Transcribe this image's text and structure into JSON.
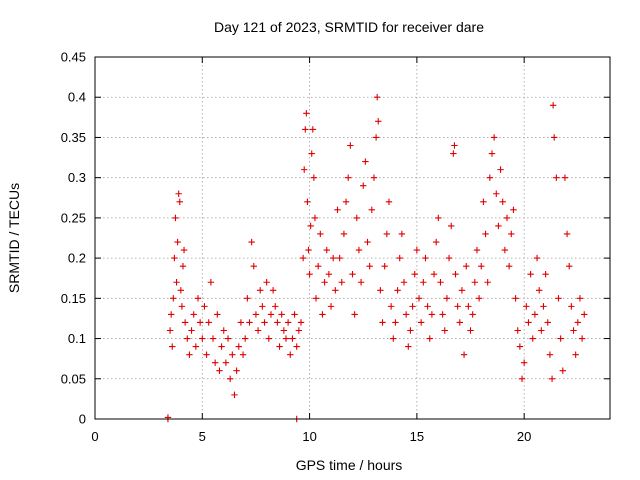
{
  "chart_data": {
    "type": "scatter",
    "title": "Day 121 of 2023, SRMTID for receiver dare",
    "xlabel": "GPS time / hours",
    "ylabel": "SRMTID / TECUs",
    "xlim": [
      0,
      24
    ],
    "ylim": [
      0,
      0.45
    ],
    "xticks": [
      0,
      5,
      10,
      15,
      20
    ],
    "xtick_labels": [
      "0",
      "5",
      "10",
      "15",
      "20"
    ],
    "yticks": [
      0,
      0.05,
      0.1,
      0.15,
      0.2,
      0.25,
      0.3,
      0.35,
      0.4,
      0.45
    ],
    "ytick_labels": [
      "0",
      "0.05",
      "0.1",
      "0.15",
      "0.2",
      "0.25",
      "0.3",
      "0.35",
      "0.4",
      "0.45"
    ],
    "grid": true,
    "marker": "+",
    "color": "#e00000",
    "series": [
      {
        "name": "SRMTID",
        "points": [
          [
            3.4,
            0.0
          ],
          [
            3.4,
            0.002
          ],
          [
            9.4,
            0.0
          ],
          [
            3.5,
            0.11
          ],
          [
            3.55,
            0.13
          ],
          [
            3.6,
            0.09
          ],
          [
            3.65,
            0.15
          ],
          [
            3.7,
            0.2
          ],
          [
            3.75,
            0.25
          ],
          [
            3.8,
            0.17
          ],
          [
            3.85,
            0.22
          ],
          [
            3.9,
            0.28
          ],
          [
            3.95,
            0.27
          ],
          [
            4.0,
            0.16
          ],
          [
            4.05,
            0.14
          ],
          [
            4.1,
            0.19
          ],
          [
            4.15,
            0.21
          ],
          [
            4.2,
            0.12
          ],
          [
            4.3,
            0.1
          ],
          [
            4.4,
            0.08
          ],
          [
            4.5,
            0.11
          ],
          [
            4.6,
            0.13
          ],
          [
            4.7,
            0.09
          ],
          [
            4.8,
            0.15
          ],
          [
            4.9,
            0.12
          ],
          [
            5.0,
            0.1
          ],
          [
            5.1,
            0.14
          ],
          [
            5.2,
            0.08
          ],
          [
            5.3,
            0.12
          ],
          [
            5.4,
            0.17
          ],
          [
            5.5,
            0.1
          ],
          [
            5.6,
            0.07
          ],
          [
            5.7,
            0.13
          ],
          [
            5.8,
            0.06
          ],
          [
            5.9,
            0.09
          ],
          [
            6.0,
            0.11
          ],
          [
            6.1,
            0.07
          ],
          [
            6.2,
            0.1
          ],
          [
            6.3,
            0.05
          ],
          [
            6.4,
            0.08
          ],
          [
            6.5,
            0.03
          ],
          [
            6.6,
            0.06
          ],
          [
            6.7,
            0.09
          ],
          [
            6.8,
            0.12
          ],
          [
            6.9,
            0.08
          ],
          [
            7.0,
            0.1
          ],
          [
            7.1,
            0.15
          ],
          [
            7.2,
            0.12
          ],
          [
            7.3,
            0.22
          ],
          [
            7.4,
            0.19
          ],
          [
            7.5,
            0.13
          ],
          [
            7.6,
            0.11
          ],
          [
            7.7,
            0.16
          ],
          [
            7.8,
            0.14
          ],
          [
            7.9,
            0.12
          ],
          [
            8.0,
            0.17
          ],
          [
            8.1,
            0.1
          ],
          [
            8.2,
            0.13
          ],
          [
            8.3,
            0.16
          ],
          [
            8.4,
            0.14
          ],
          [
            8.5,
            0.12
          ],
          [
            8.6,
            0.09
          ],
          [
            8.7,
            0.13
          ],
          [
            8.8,
            0.11
          ],
          [
            8.9,
            0.1
          ],
          [
            9.0,
            0.12
          ],
          [
            9.1,
            0.08
          ],
          [
            9.2,
            0.1
          ],
          [
            9.3,
            0.13
          ],
          [
            9.4,
            0.09
          ],
          [
            9.5,
            0.11
          ],
          [
            9.6,
            0.12
          ],
          [
            9.7,
            0.2
          ],
          [
            9.75,
            0.31
          ],
          [
            9.8,
            0.36
          ],
          [
            9.85,
            0.38
          ],
          [
            9.9,
            0.27
          ],
          [
            9.95,
            0.21
          ],
          [
            10.0,
            0.18
          ],
          [
            10.05,
            0.24
          ],
          [
            10.1,
            0.33
          ],
          [
            10.15,
            0.36
          ],
          [
            10.2,
            0.3
          ],
          [
            10.25,
            0.25
          ],
          [
            10.3,
            0.15
          ],
          [
            10.4,
            0.19
          ],
          [
            10.5,
            0.23
          ],
          [
            10.6,
            0.13
          ],
          [
            10.7,
            0.17
          ],
          [
            10.8,
            0.21
          ],
          [
            10.9,
            0.18
          ],
          [
            11.0,
            0.14
          ],
          [
            11.1,
            0.2
          ],
          [
            11.2,
            0.16
          ],
          [
            11.3,
            0.26
          ],
          [
            11.4,
            0.2
          ],
          [
            11.5,
            0.17
          ],
          [
            11.6,
            0.23
          ],
          [
            11.7,
            0.27
          ],
          [
            11.8,
            0.3
          ],
          [
            11.9,
            0.34
          ],
          [
            12.0,
            0.18
          ],
          [
            12.1,
            0.13
          ],
          [
            12.2,
            0.25
          ],
          [
            12.3,
            0.21
          ],
          [
            12.4,
            0.17
          ],
          [
            12.5,
            0.29
          ],
          [
            12.6,
            0.32
          ],
          [
            12.7,
            0.22
          ],
          [
            12.8,
            0.19
          ],
          [
            12.9,
            0.26
          ],
          [
            13.0,
            0.3
          ],
          [
            13.1,
            0.35
          ],
          [
            13.15,
            0.4
          ],
          [
            13.2,
            0.37
          ],
          [
            13.3,
            0.16
          ],
          [
            13.4,
            0.12
          ],
          [
            13.5,
            0.19
          ],
          [
            13.6,
            0.23
          ],
          [
            13.7,
            0.27
          ],
          [
            13.8,
            0.14
          ],
          [
            13.9,
            0.1
          ],
          [
            14.0,
            0.12
          ],
          [
            14.1,
            0.16
          ],
          [
            14.2,
            0.2
          ],
          [
            14.3,
            0.23
          ],
          [
            14.4,
            0.17
          ],
          [
            14.5,
            0.13
          ],
          [
            14.6,
            0.09
          ],
          [
            14.7,
            0.11
          ],
          [
            14.8,
            0.14
          ],
          [
            14.9,
            0.18
          ],
          [
            15.0,
            0.21
          ],
          [
            15.1,
            0.15
          ],
          [
            15.2,
            0.12
          ],
          [
            15.3,
            0.17
          ],
          [
            15.4,
            0.2
          ],
          [
            15.5,
            0.14
          ],
          [
            15.6,
            0.1
          ],
          [
            15.7,
            0.13
          ],
          [
            15.8,
            0.18
          ],
          [
            15.9,
            0.22
          ],
          [
            16.0,
            0.25
          ],
          [
            16.1,
            0.17
          ],
          [
            16.2,
            0.13
          ],
          [
            16.3,
            0.11
          ],
          [
            16.4,
            0.15
          ],
          [
            16.5,
            0.2
          ],
          [
            16.6,
            0.24
          ],
          [
            16.7,
            0.33
          ],
          [
            16.75,
            0.34
          ],
          [
            16.8,
            0.18
          ],
          [
            16.9,
            0.14
          ],
          [
            17.0,
            0.12
          ],
          [
            17.1,
            0.16
          ],
          [
            17.2,
            0.08
          ],
          [
            17.3,
            0.19
          ],
          [
            17.4,
            0.14
          ],
          [
            17.5,
            0.11
          ],
          [
            17.6,
            0.13
          ],
          [
            17.7,
            0.17
          ],
          [
            17.8,
            0.21
          ],
          [
            17.9,
            0.15
          ],
          [
            18.0,
            0.19
          ],
          [
            18.1,
            0.27
          ],
          [
            18.2,
            0.23
          ],
          [
            18.3,
            0.17
          ],
          [
            18.4,
            0.3
          ],
          [
            18.5,
            0.33
          ],
          [
            18.6,
            0.35
          ],
          [
            18.7,
            0.28
          ],
          [
            18.8,
            0.24
          ],
          [
            18.9,
            0.31
          ],
          [
            19.0,
            0.27
          ],
          [
            19.1,
            0.21
          ],
          [
            19.2,
            0.25
          ],
          [
            19.3,
            0.19
          ],
          [
            19.4,
            0.23
          ],
          [
            19.5,
            0.26
          ],
          [
            19.6,
            0.15
          ],
          [
            19.7,
            0.11
          ],
          [
            19.8,
            0.09
          ],
          [
            19.9,
            0.05
          ],
          [
            20.0,
            0.07
          ],
          [
            20.1,
            0.14
          ],
          [
            20.2,
            0.12
          ],
          [
            20.3,
            0.18
          ],
          [
            20.4,
            0.1
          ],
          [
            20.5,
            0.13
          ],
          [
            20.6,
            0.2
          ],
          [
            20.7,
            0.16
          ],
          [
            20.8,
            0.11
          ],
          [
            20.9,
            0.14
          ],
          [
            21.0,
            0.18
          ],
          [
            21.1,
            0.12
          ],
          [
            21.2,
            0.08
          ],
          [
            21.3,
            0.05
          ],
          [
            21.35,
            0.39
          ],
          [
            21.4,
            0.35
          ],
          [
            21.5,
            0.3
          ],
          [
            21.6,
            0.15
          ],
          [
            21.7,
            0.1
          ],
          [
            21.8,
            0.06
          ],
          [
            21.9,
            0.3
          ],
          [
            22.0,
            0.23
          ],
          [
            22.1,
            0.19
          ],
          [
            22.2,
            0.14
          ],
          [
            22.3,
            0.11
          ],
          [
            22.4,
            0.08
          ],
          [
            22.5,
            0.12
          ],
          [
            22.6,
            0.15
          ],
          [
            22.7,
            0.1
          ],
          [
            22.8,
            0.13
          ]
        ]
      }
    ]
  }
}
